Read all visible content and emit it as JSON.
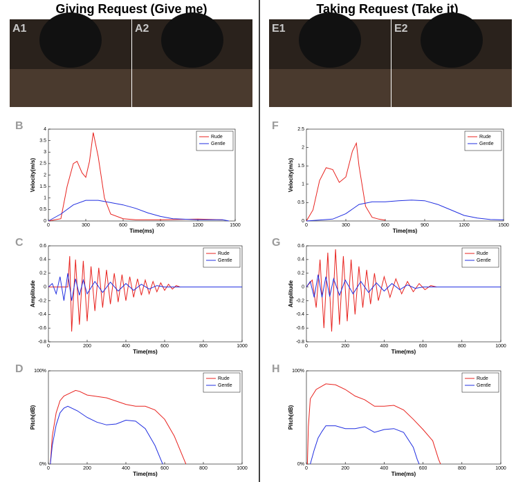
{
  "headers": [
    "Giving Request (Give me)",
    "Taking Request (Take it)"
  ],
  "photos": [
    {
      "label": "A1"
    },
    {
      "label": "A2"
    },
    {
      "label": "E1"
    },
    {
      "label": "E2"
    }
  ],
  "chart_data": [
    {
      "type": "line",
      "panel": "B",
      "xlabel": "Time(ms)",
      "ylabel": "Velocity(m/s)",
      "xlim": [
        0,
        1500
      ],
      "xticks": [
        0,
        300,
        600,
        900,
        1200,
        1500
      ],
      "ylim": [
        0,
        4
      ],
      "yticks": [
        0,
        0.5,
        1,
        1.5,
        2,
        2.5,
        3,
        3.5,
        4
      ],
      "legend": "upper right",
      "series": [
        {
          "name": "Rude",
          "color": "#e8211d",
          "x": [
            0,
            100,
            150,
            200,
            230,
            270,
            300,
            330,
            360,
            400,
            450,
            500,
            600,
            700,
            900,
            1200,
            1400
          ],
          "values": [
            0,
            0.1,
            1.5,
            2.5,
            2.6,
            2.1,
            1.9,
            2.6,
            3.85,
            2.8,
            1.0,
            0.3,
            0.1,
            0.05,
            0.05,
            0.08,
            0.05
          ]
        },
        {
          "name": "Gentle",
          "color": "#1f2de0",
          "x": [
            0,
            100,
            200,
            300,
            400,
            500,
            600,
            700,
            800,
            900,
            1000,
            1200,
            1400,
            1450
          ],
          "values": [
            0,
            0.3,
            0.7,
            0.9,
            0.9,
            0.8,
            0.7,
            0.55,
            0.35,
            0.2,
            0.1,
            0.05,
            0.05,
            0
          ]
        }
      ]
    },
    {
      "type": "line",
      "panel": "C",
      "xlabel": "Time(ms)",
      "ylabel": "Amplitude",
      "xlim": [
        0,
        1000
      ],
      "xticks": [
        0,
        200,
        400,
        600,
        800,
        1000
      ],
      "ylim": [
        -0.8,
        0.6
      ],
      "yticks": [
        -0.8,
        -0.6,
        -0.4,
        -0.2,
        0,
        0.2,
        0.4,
        0.6
      ],
      "legend": "upper right",
      "series": [
        {
          "name": "Rude",
          "color": "#e8211d",
          "x": [
            0,
            100,
            110,
            120,
            140,
            160,
            180,
            200,
            220,
            240,
            260,
            280,
            300,
            320,
            340,
            360,
            380,
            400,
            420,
            440,
            460,
            480,
            500,
            520,
            540,
            560,
            580,
            600,
            620,
            640,
            660,
            680
          ],
          "values": [
            0,
            0,
            0.45,
            -0.65,
            0.4,
            -0.55,
            0.38,
            -0.5,
            0.3,
            -0.35,
            0.28,
            -0.3,
            0.25,
            -0.25,
            0.2,
            -0.22,
            0.18,
            -0.2,
            0.15,
            -0.15,
            0.12,
            -0.12,
            0.1,
            -0.1,
            0.08,
            -0.07,
            0.06,
            -0.05,
            0.04,
            -0.03,
            0.02,
            0
          ]
        },
        {
          "name": "Gentle",
          "color": "#1f2de0",
          "x": [
            0,
            20,
            40,
            60,
            80,
            100,
            120,
            140,
            160,
            180,
            200,
            240,
            280,
            320,
            360,
            400,
            440,
            480,
            520,
            560,
            600,
            1000
          ],
          "values": [
            0,
            0.05,
            -0.1,
            0.15,
            -0.2,
            0.2,
            -0.2,
            0.12,
            -0.12,
            0.1,
            -0.1,
            0.08,
            -0.08,
            0.07,
            -0.06,
            0.05,
            -0.05,
            0.04,
            -0.03,
            0.02,
            0,
            0
          ]
        }
      ]
    },
    {
      "type": "line",
      "panel": "D",
      "xlabel": "Time(ms)",
      "ylabel": "Pitch(dB)",
      "xlim": [
        0,
        1000
      ],
      "xticks": [
        0,
        200,
        400,
        600,
        800,
        1000
      ],
      "ylim": [
        0,
        100
      ],
      "yticks": [
        {
          "value": 0,
          "label": "0%"
        },
        {
          "value": 100,
          "label": "100%"
        }
      ],
      "legend": "upper right",
      "series": [
        {
          "name": "Rude",
          "color": "#e8211d",
          "x": [
            10,
            20,
            40,
            60,
            80,
            100,
            140,
            160,
            200,
            300,
            400,
            450,
            500,
            550,
            600,
            650,
            700,
            710
          ],
          "values": [
            0,
            30,
            55,
            68,
            73,
            75,
            79,
            78,
            74,
            71,
            64,
            62,
            62,
            58,
            48,
            30,
            5,
            0
          ]
        },
        {
          "name": "Gentle",
          "color": "#1f2de0",
          "x": [
            10,
            20,
            40,
            60,
            80,
            100,
            150,
            200,
            250,
            300,
            350,
            400,
            450,
            500,
            550,
            580,
            590
          ],
          "values": [
            0,
            20,
            42,
            55,
            60,
            62,
            57,
            50,
            45,
            42,
            43,
            47,
            46,
            38,
            20,
            5,
            0
          ]
        }
      ]
    },
    {
      "type": "line",
      "panel": "F",
      "xlabel": "Time(ms)",
      "ylabel": "Velocity(m/s)",
      "xlim": [
        0,
        1500
      ],
      "xticks": [
        0,
        300,
        600,
        900,
        1200,
        1500
      ],
      "ylim": [
        0,
        2.5
      ],
      "yticks": [
        0,
        0.5,
        1,
        1.5,
        2,
        2.5
      ],
      "legend": "upper right",
      "series": [
        {
          "name": "Rude",
          "color": "#e8211d",
          "x": [
            0,
            50,
            100,
            150,
            200,
            250,
            300,
            350,
            380,
            400,
            450,
            500,
            550,
            600
          ],
          "values": [
            0,
            0.3,
            1.1,
            1.45,
            1.4,
            1.05,
            1.2,
            1.9,
            2.12,
            1.5,
            0.4,
            0.1,
            0.05,
            0.02
          ]
        },
        {
          "name": "Gentle",
          "color": "#1f2de0",
          "x": [
            0,
            200,
            300,
            400,
            500,
            600,
            700,
            800,
            900,
            1000,
            1100,
            1200,
            1300,
            1400,
            1500
          ],
          "values": [
            0,
            0.05,
            0.2,
            0.45,
            0.52,
            0.52,
            0.55,
            0.57,
            0.55,
            0.45,
            0.3,
            0.15,
            0.08,
            0.04,
            0.03
          ]
        }
      ]
    },
    {
      "type": "line",
      "panel": "G",
      "xlabel": "Time(ms)",
      "ylabel": "Amplitude",
      "xlim": [
        0,
        1000
      ],
      "xticks": [
        0,
        200,
        400,
        600,
        800,
        1000
      ],
      "ylim": [
        -0.8,
        0.6
      ],
      "yticks": [
        -0.8,
        -0.6,
        -0.4,
        -0.2,
        0,
        0.2,
        0.4,
        0.6
      ],
      "legend": "upper right",
      "series": [
        {
          "name": "Rude",
          "color": "#e8211d",
          "x": [
            0,
            30,
            50,
            70,
            90,
            110,
            130,
            150,
            170,
            190,
            210,
            230,
            250,
            270,
            290,
            310,
            330,
            350,
            370,
            400,
            430,
            460,
            490,
            520,
            550,
            580,
            610,
            640,
            670
          ],
          "values": [
            0,
            0.1,
            -0.3,
            0.4,
            -0.6,
            0.5,
            -0.65,
            0.55,
            -0.55,
            0.45,
            -0.5,
            0.4,
            -0.4,
            0.3,
            -0.3,
            0.25,
            -0.25,
            0.2,
            -0.2,
            0.15,
            -0.15,
            0.12,
            -0.1,
            0.08,
            -0.07,
            0.05,
            -0.04,
            0.02,
            0
          ]
        },
        {
          "name": "Gentle",
          "color": "#1f2de0",
          "x": [
            0,
            20,
            40,
            60,
            80,
            100,
            120,
            140,
            170,
            200,
            240,
            280,
            320,
            360,
            400,
            440,
            480,
            520,
            560,
            600,
            1000
          ],
          "values": [
            0,
            0.08,
            -0.15,
            0.18,
            -0.15,
            0.15,
            -0.14,
            0.12,
            -0.12,
            0.1,
            -0.1,
            0.08,
            -0.08,
            0.06,
            -0.06,
            0.05,
            -0.04,
            0.03,
            -0.02,
            0,
            0
          ]
        }
      ]
    },
    {
      "type": "line",
      "panel": "H",
      "xlabel": "Time(ms)",
      "ylabel": "Pitch(dB)",
      "xlim": [
        0,
        1000
      ],
      "xticks": [
        0,
        200,
        400,
        600,
        800,
        1000
      ],
      "ylim": [
        0,
        100
      ],
      "yticks": [
        {
          "value": 0,
          "label": "0%"
        },
        {
          "value": 100,
          "label": "100%"
        }
      ],
      "legend": "upper right",
      "series": [
        {
          "name": "Rude",
          "color": "#e8211d",
          "x": [
            5,
            10,
            20,
            50,
            100,
            150,
            200,
            250,
            300,
            350,
            400,
            450,
            500,
            550,
            600,
            650,
            680,
            690
          ],
          "values": [
            0,
            40,
            70,
            80,
            86,
            85,
            80,
            73,
            69,
            62,
            62,
            63,
            58,
            48,
            37,
            25,
            5,
            0
          ]
        },
        {
          "name": "Gentle",
          "color": "#1f2de0",
          "x": [
            20,
            40,
            60,
            80,
            100,
            150,
            200,
            250,
            300,
            350,
            400,
            450,
            500,
            550,
            570,
            580
          ],
          "values": [
            0,
            15,
            28,
            35,
            41,
            41,
            38,
            38,
            40,
            34,
            37,
            38,
            34,
            18,
            5,
            0
          ]
        }
      ]
    }
  ]
}
